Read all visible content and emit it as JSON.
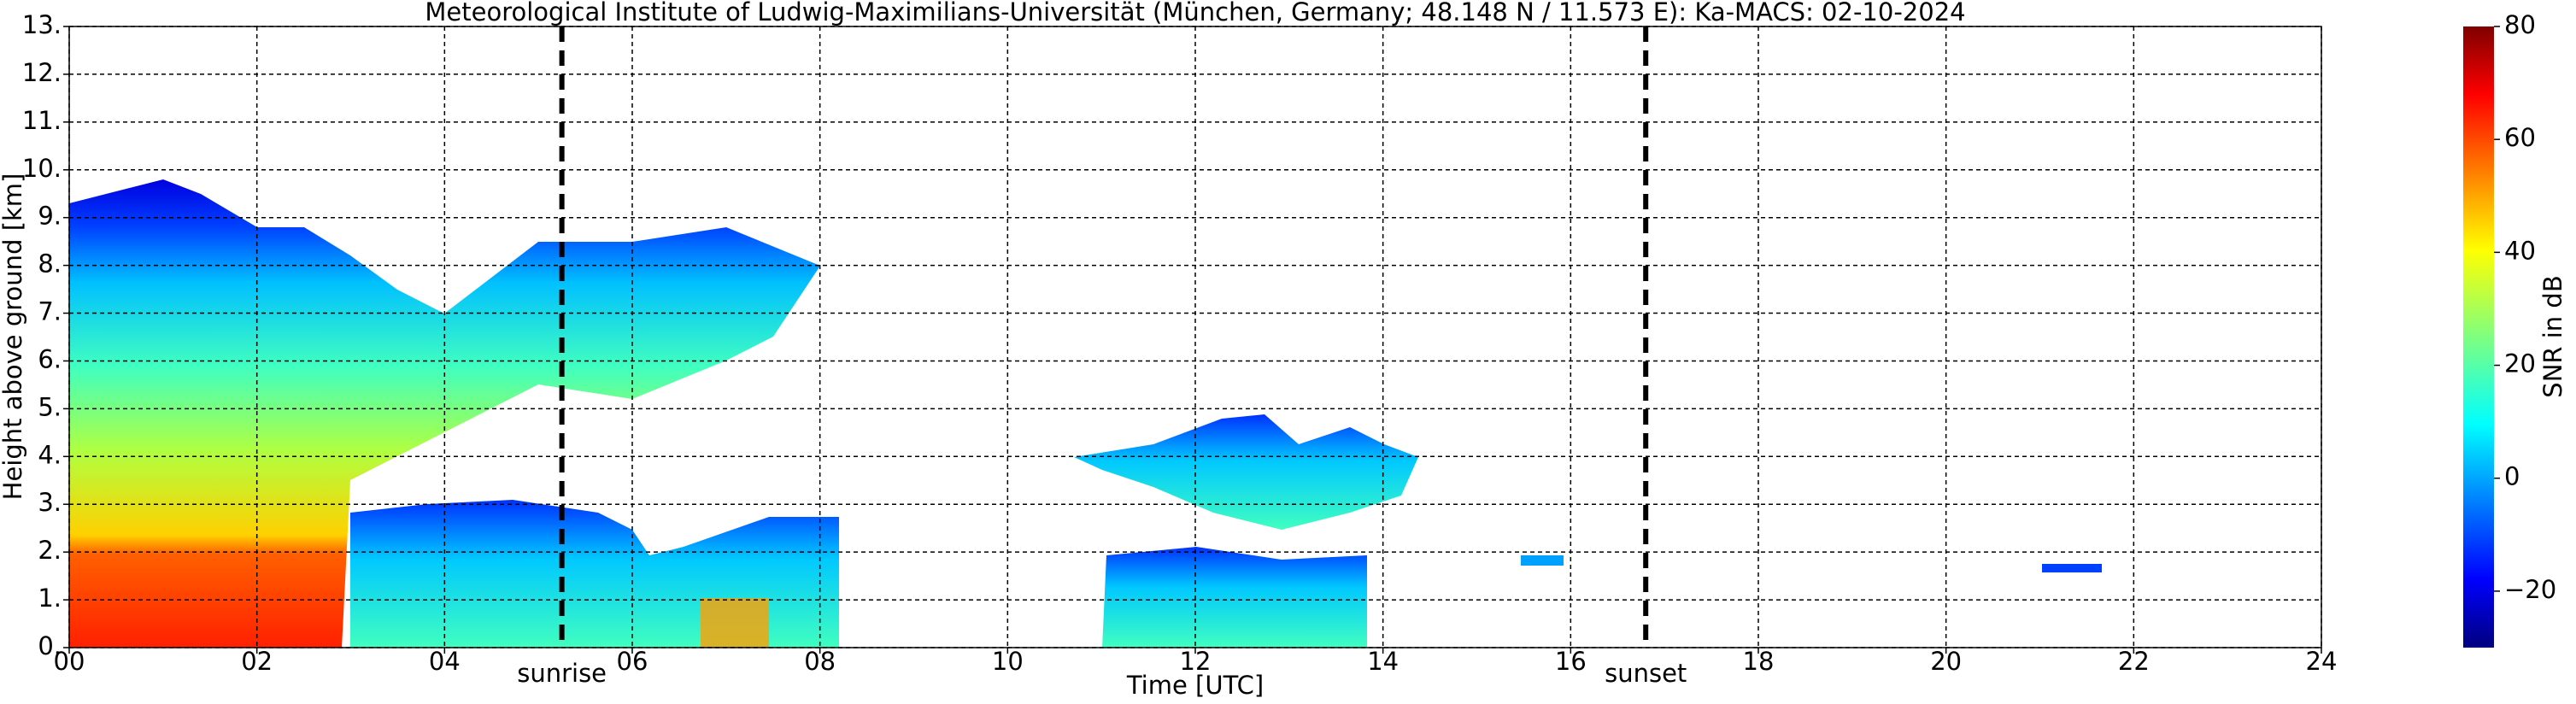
{
  "chart_data": {
    "type": "radar-time-height",
    "title": "Meteorological Institute of Ludwig-Maximilians-Universität (München, Germany; 48.148 N / 11.573 E):    Ka-MACS: 02-10-2024",
    "xlabel": "Time [UTC]",
    "ylabel": "Height above ground [km]",
    "xlim": [
      0,
      24
    ],
    "ylim": [
      0,
      13
    ],
    "xticks": [
      {
        "value": 0,
        "label": "00"
      },
      {
        "value": 2,
        "label": "02"
      },
      {
        "value": 4,
        "label": "04"
      },
      {
        "value": 6,
        "label": "06"
      },
      {
        "value": 8,
        "label": "08"
      },
      10,
      12,
      14,
      16,
      18,
      20,
      22,
      24
    ],
    "yticks": [
      {
        "value": 0,
        "label": "0."
      },
      {
        "value": 1,
        "label": "1."
      },
      {
        "value": 2,
        "label": "2."
      },
      {
        "value": 3,
        "label": "3."
      },
      {
        "value": 4,
        "label": "4."
      },
      {
        "value": 5,
        "label": "5."
      },
      {
        "value": 6,
        "label": "6."
      },
      {
        "value": 7,
        "label": "7."
      },
      {
        "value": 8,
        "label": "8."
      },
      {
        "value": 9,
        "label": "9."
      },
      {
        "value": 10,
        "label": "10."
      },
      {
        "value": 11,
        "label": "11."
      },
      {
        "value": 12,
        "label": "12."
      },
      {
        "value": 13,
        "label": "13."
      }
    ],
    "grid": true,
    "annotations": [
      {
        "label": "sunrise",
        "x": 5.25
      },
      {
        "label": "sunset",
        "x": 16.8
      }
    ],
    "colorbar": {
      "label": "SNR in dB",
      "colormap": "jet",
      "lim": [
        -30,
        80
      ],
      "ticks": [
        {
          "value": -20,
          "label": "−20"
        },
        0,
        20,
        40,
        60,
        80
      ]
    }
  }
}
